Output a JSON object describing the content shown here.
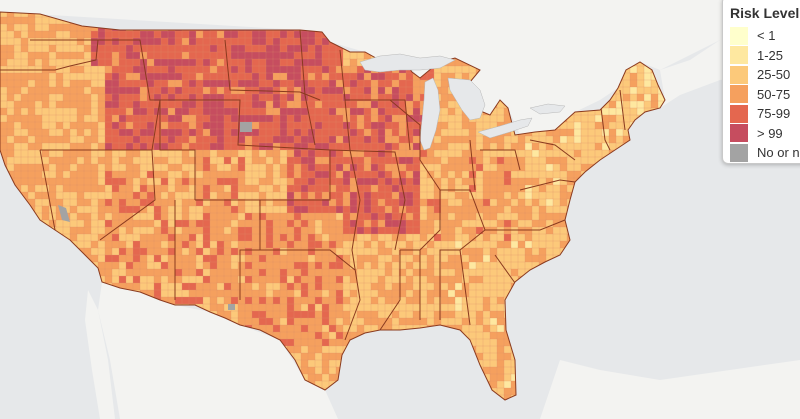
{
  "legend": {
    "title": "Risk Level",
    "items": [
      {
        "label": "< 1",
        "color": "#ffffcc"
      },
      {
        "label": "1-25",
        "color": "#fee8a0"
      },
      {
        "label": "25-50",
        "color": "#fcc97a"
      },
      {
        "label": "50-75",
        "color": "#f5a05e"
      },
      {
        "label": "75-99",
        "color": "#e4674f"
      },
      {
        "label": "> 99",
        "color": "#c64d5f"
      },
      {
        "label": "No or n",
        "color": "#a3a3a3"
      }
    ]
  },
  "colors": {
    "water": "#e6e8ea",
    "land": "#f3f3f1",
    "state_border": "#8a3a1f",
    "county_border": "#d87858"
  }
}
